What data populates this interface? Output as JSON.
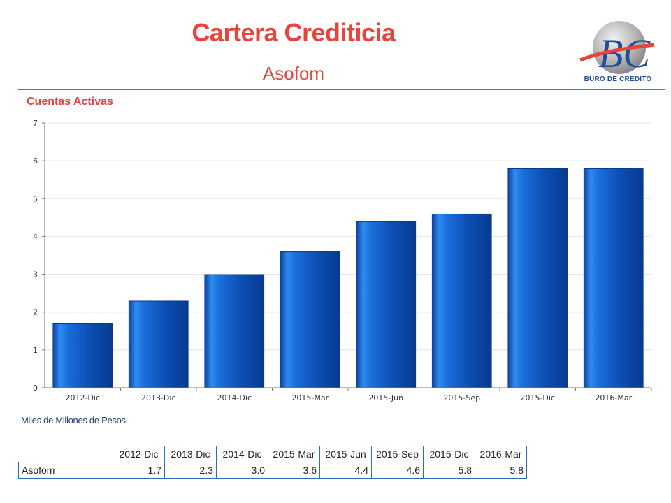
{
  "header": {
    "title": "Cartera Crediticia",
    "subtitle": "Asofom",
    "logo_text": "BURO DE CREDITO",
    "logo_letters": "BC"
  },
  "section_title": "Cuentas Activas",
  "unit_note": "Miles de Millones de Pesos",
  "colors": {
    "accent": "#e8453a",
    "bar": "#1262c8",
    "table_border": "#2a6fb3"
  },
  "chart_data": {
    "type": "bar",
    "categories": [
      "2012-Dic",
      "2013-Dic",
      "2014-Dic",
      "2015-Mar",
      "2015-Jun",
      "2015-Sep",
      "2015-Dic",
      "2016-Mar"
    ],
    "values": [
      1.7,
      2.3,
      3.0,
      3.6,
      4.4,
      4.6,
      5.8,
      5.8
    ],
    "ylim": [
      0,
      7
    ],
    "yticks": [
      "0",
      "1",
      "2",
      "3",
      "4",
      "5",
      "6",
      "7"
    ],
    "grid": true,
    "legend": "none"
  },
  "table": {
    "headers": [
      "2012-Dic",
      "2013-Dic",
      "2014-Dic",
      "2015-Mar",
      "2015-Jun",
      "2015-Sep",
      "2015-Dic",
      "2016-Mar"
    ],
    "row_label": "Asofom",
    "values": [
      "1.7",
      "2.3",
      "3.0",
      "3.6",
      "4.4",
      "4.6",
      "5.8",
      "5.8"
    ]
  }
}
